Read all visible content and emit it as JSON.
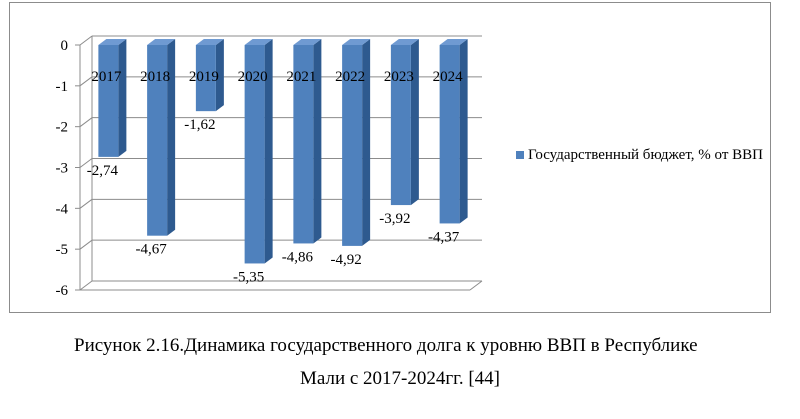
{
  "chart_data": {
    "type": "bar",
    "style": "3d-column",
    "categories": [
      "2017",
      "2018",
      "2019",
      "2020",
      "2021",
      "2022",
      "2023",
      "2024"
    ],
    "series": [
      {
        "name": "Государственный бюджет, % от ВВП",
        "values": [
          -2.74,
          -4.67,
          -1.62,
          -5.35,
          -4.86,
          -4.92,
          -3.92,
          -4.37
        ],
        "labels": [
          "-2,74",
          "-4,67",
          "-1,62",
          "-5,35",
          "-4,86",
          "-4,92",
          "-3,92",
          "-4,37"
        ],
        "color": "#4f81bd"
      }
    ],
    "ylim": [
      -6,
      0
    ],
    "yticks": [
      0,
      -1,
      -2,
      -3,
      -4,
      -5,
      -6
    ],
    "ytick_labels": [
      "0",
      "-1",
      "-2",
      "-3",
      "-4",
      "-5",
      "-6"
    ],
    "grid": true,
    "legend_position": "right"
  },
  "caption": {
    "line1": "Рисунок  2.16.Динамика государственного долга к уровню ВВП в Республике",
    "line2": "Мали с 2017-2024гг. [44]"
  }
}
